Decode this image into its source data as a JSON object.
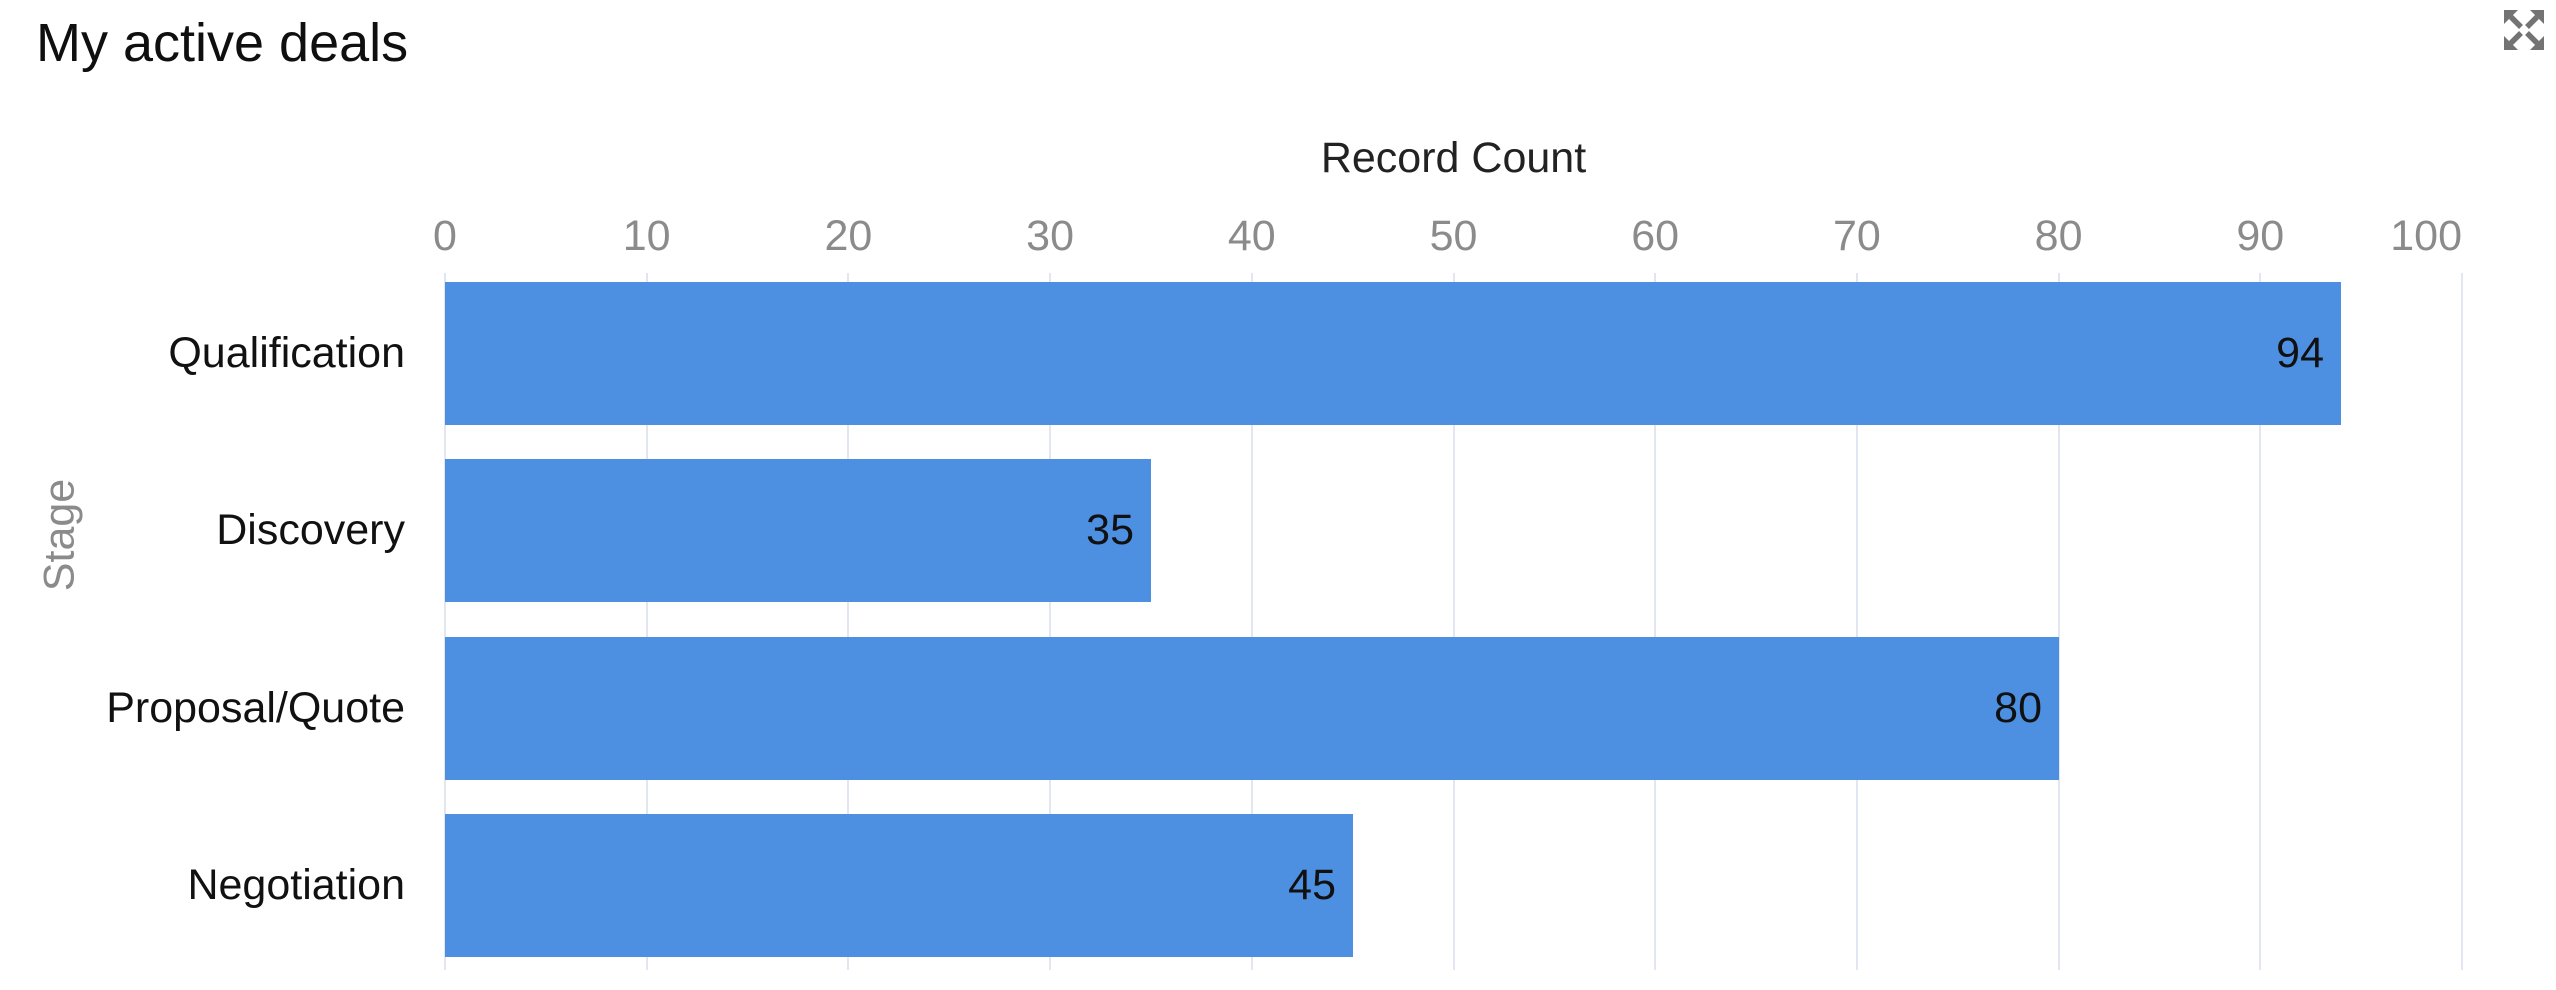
{
  "widget": {
    "title": "My active deals",
    "expand_icon": "expand-arrows-icon"
  },
  "chart_data": {
    "type": "bar",
    "orientation": "horizontal",
    "title": "My active deals",
    "xlabel": "Record Count",
    "ylabel": "Stage",
    "categories": [
      "Qualification",
      "Discovery",
      "Proposal/Quote",
      "Negotiation"
    ],
    "values": [
      94,
      35,
      80,
      45
    ],
    "xlim": [
      0,
      100
    ],
    "xticks": [
      0,
      10,
      20,
      30,
      40,
      50,
      60,
      70,
      80,
      90,
      100
    ],
    "grid": true,
    "legend_position": "none",
    "data_labels": true
  },
  "colors": {
    "bar": "#4D90E2",
    "gridline": "#E1E6F0",
    "tick_label": "#8B8B8B",
    "x_axis_title": "#222222",
    "y_axis_title": "#8B8B8B",
    "category_label": "#111111",
    "value_label": "#111111",
    "widget_title": "#0F0F0F",
    "icon": "#737373",
    "background": "#FFFFFF"
  }
}
